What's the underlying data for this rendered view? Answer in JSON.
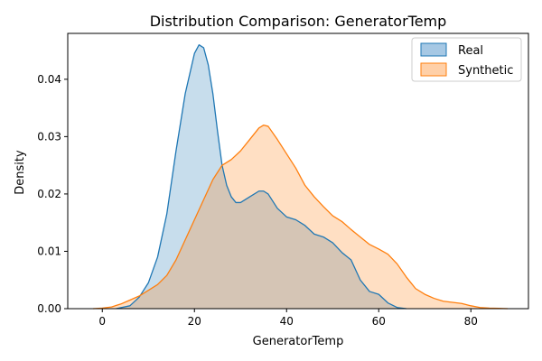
{
  "chart_data": {
    "type": "area",
    "title": "Distribution Comparison: GeneratorTemp",
    "xlabel": "GeneratorTemp",
    "ylabel": "Density",
    "xlim": [
      -7.5,
      92.5
    ],
    "ylim": [
      0,
      0.048
    ],
    "xticks": [
      0,
      20,
      40,
      60,
      80
    ],
    "yticks": [
      0.0,
      0.01,
      0.02,
      0.03,
      0.04
    ],
    "xtick_labels": [
      "0",
      "20",
      "40",
      "60",
      "80"
    ],
    "ytick_labels": [
      "0.00",
      "0.01",
      "0.02",
      "0.03",
      "0.04"
    ],
    "grid": false,
    "legend_position": "top-right",
    "series": [
      {
        "name": "Real",
        "color": "#1f77b4",
        "fill_color": "#a6c8e4",
        "x": [
          3,
          6,
          8,
          10,
          12,
          14,
          16,
          18,
          20,
          21,
          22,
          23,
          24,
          25,
          26,
          27,
          28,
          29,
          30,
          32,
          34,
          35,
          36,
          38,
          40,
          42,
          44,
          46,
          48,
          50,
          52,
          54,
          56,
          58,
          60,
          62,
          64,
          66
        ],
        "y": [
          0.0,
          0.0005,
          0.002,
          0.0045,
          0.009,
          0.0165,
          0.0275,
          0.0375,
          0.0445,
          0.046,
          0.0455,
          0.0425,
          0.0375,
          0.031,
          0.025,
          0.0215,
          0.0195,
          0.0185,
          0.0185,
          0.0195,
          0.0205,
          0.0205,
          0.02,
          0.0175,
          0.016,
          0.0155,
          0.0145,
          0.013,
          0.0125,
          0.0115,
          0.0098,
          0.0085,
          0.005,
          0.003,
          0.0025,
          0.001,
          0.0002,
          0.0
        ]
      },
      {
        "name": "Synthetic",
        "color": "#ff7f0e",
        "fill_color": "#ffd0a8",
        "x": [
          -2,
          0,
          2,
          4,
          6,
          8,
          10,
          12,
          14,
          16,
          18,
          20,
          22,
          24,
          26,
          28,
          30,
          32,
          34,
          35,
          36,
          38,
          40,
          42,
          44,
          46,
          48,
          50,
          52,
          54,
          56,
          58,
          60,
          62,
          64,
          66,
          68,
          70,
          72,
          74,
          76,
          78,
          80,
          82,
          84,
          86,
          88
        ],
        "y": [
          0.0,
          0.0001,
          0.0003,
          0.0008,
          0.0015,
          0.0022,
          0.0032,
          0.0042,
          0.0058,
          0.0085,
          0.012,
          0.0155,
          0.019,
          0.0225,
          0.025,
          0.026,
          0.0275,
          0.0295,
          0.0315,
          0.032,
          0.0318,
          0.0295,
          0.027,
          0.0245,
          0.0215,
          0.0195,
          0.0178,
          0.0162,
          0.0152,
          0.0138,
          0.0125,
          0.0112,
          0.0104,
          0.0095,
          0.0078,
          0.0055,
          0.0035,
          0.0025,
          0.0018,
          0.0013,
          0.0011,
          0.0009,
          0.0005,
          0.0002,
          0.0001,
          5e-05,
          0.0
        ]
      }
    ]
  }
}
